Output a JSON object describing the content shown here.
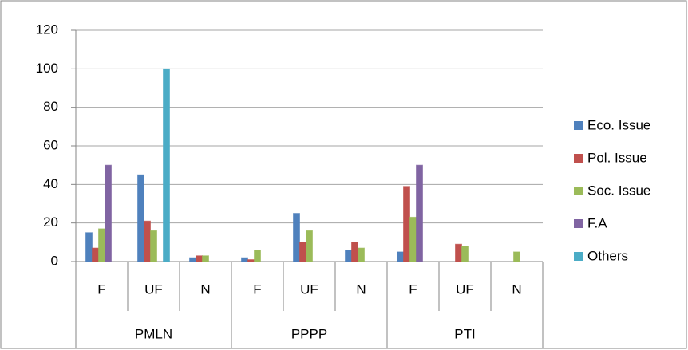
{
  "chart_data": {
    "type": "bar",
    "categories": [
      "F",
      "UF",
      "N",
      "F",
      "UF",
      "N",
      "F",
      "UF",
      "N"
    ],
    "groups": [
      "PMLN",
      "PPPP",
      "PTI"
    ],
    "series": [
      {
        "name": "Eco. Issue",
        "color": "#4f81bd",
        "values": [
          15,
          45,
          2,
          2,
          25,
          6,
          5,
          0,
          0
        ]
      },
      {
        "name": "Pol. Issue",
        "color": "#c0504d",
        "values": [
          7,
          21,
          3,
          1,
          10,
          10,
          39,
          9,
          0
        ]
      },
      {
        "name": "Soc. Issue",
        "color": "#9bbb59",
        "values": [
          17,
          16,
          3,
          6,
          16,
          7,
          23,
          8,
          5
        ]
      },
      {
        "name": "F.A",
        "color": "#8064a2",
        "values": [
          50,
          0,
          0,
          0,
          0,
          0,
          50,
          0,
          0
        ]
      },
      {
        "name": "Others",
        "color": "#4bacc6",
        "values": [
          0,
          100,
          0,
          0,
          0,
          0,
          0,
          0,
          0
        ]
      }
    ],
    "ylim": [
      0,
      120
    ],
    "yticks": [
      0,
      20,
      40,
      60,
      80,
      100,
      120
    ],
    "grid": true,
    "legend": "right"
  }
}
